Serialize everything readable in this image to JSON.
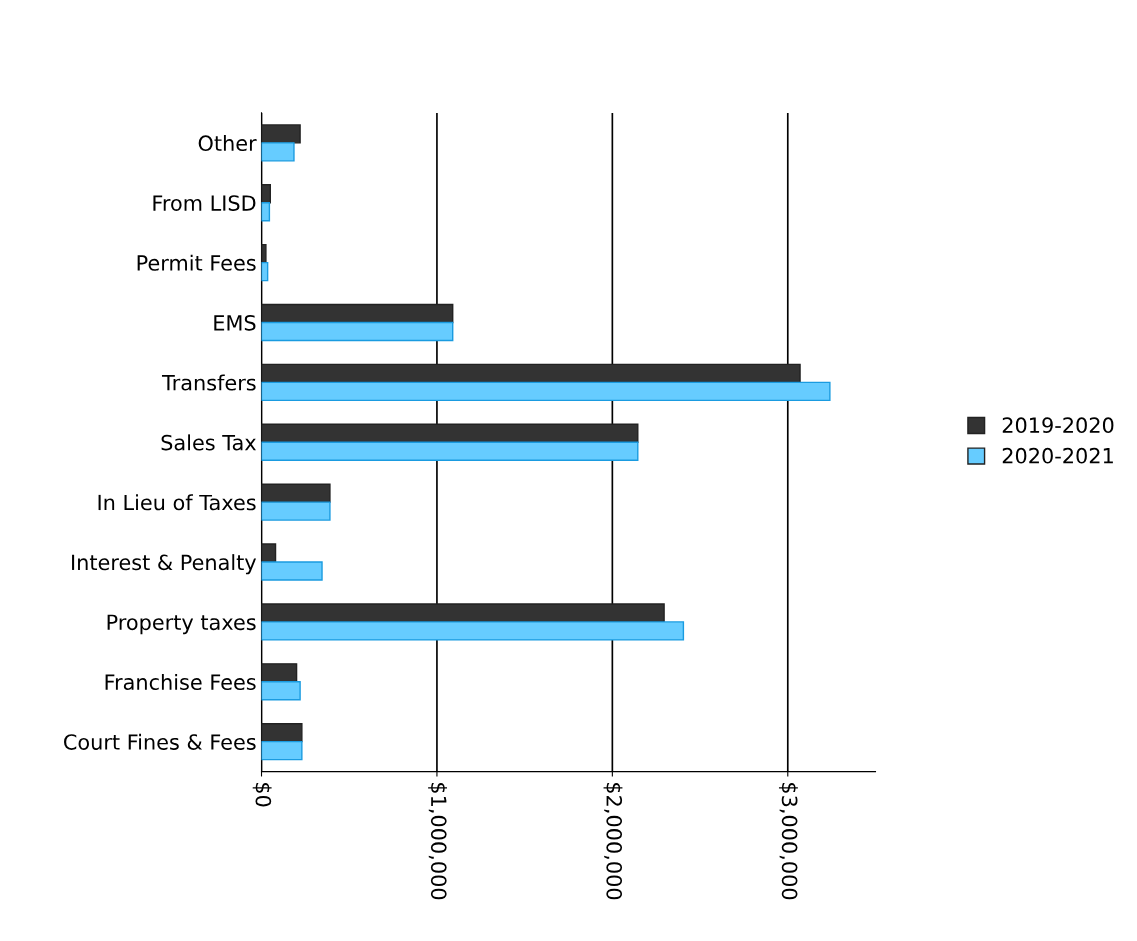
{
  "chart_data": {
    "type": "bar",
    "orientation": "horizontal",
    "categories": [
      "Other",
      "From LISD",
      "Permit Fees",
      "EMS",
      "Transfers",
      "Sales Tax",
      "In Lieu of Taxes",
      "Interest & Penalty",
      "Property taxes",
      "Franchise Fees",
      "Court Fines & Fees"
    ],
    "series": [
      {
        "name": "2019-2020",
        "color": "#333333",
        "values": [
          220000,
          50000,
          25000,
          1090000,
          3070000,
          2145000,
          390000,
          80000,
          2295000,
          200000,
          230000
        ]
      },
      {
        "name": "2020-2021",
        "color": "#66ccff",
        "values": [
          185000,
          45000,
          35000,
          1090000,
          3240000,
          2145000,
          390000,
          345000,
          2405000,
          220000,
          230000
        ]
      }
    ],
    "xlim": [
      0,
      3500000
    ],
    "xticks": [
      {
        "value": 0,
        "label": "$0"
      },
      {
        "value": 1000000,
        "label": "$1,000,000"
      },
      {
        "value": 2000000,
        "label": "$2,000,000"
      },
      {
        "value": 3000000,
        "label": "$3,000,000"
      }
    ],
    "grid": "x",
    "legend": "right"
  }
}
